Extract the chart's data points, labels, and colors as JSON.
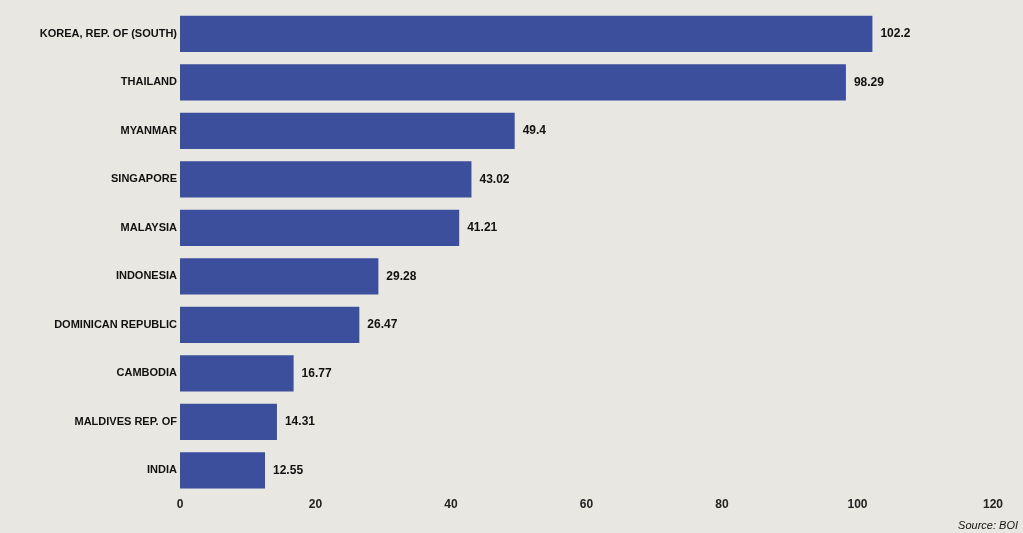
{
  "chart_data": {
    "type": "bar",
    "orientation": "horizontal",
    "categories": [
      "KOREA, REP. OF (SOUTH)",
      "THAILAND",
      "MYANMAR",
      "SINGAPORE",
      "MALAYSIA",
      "INDONESIA",
      "DOMINICAN REPUBLIC",
      "CAMBODIA",
      "MALDIVES REP. OF",
      "INDIA"
    ],
    "values": [
      102.2,
      98.29,
      49.4,
      43.02,
      41.21,
      29.28,
      26.47,
      16.77,
      14.31,
      12.55
    ],
    "color": "#3b4f9c",
    "xlim": [
      0,
      120
    ],
    "xticks": [
      0,
      20,
      40,
      60,
      80,
      100,
      120
    ],
    "grid": false,
    "legend": false,
    "data_labels": true,
    "annotations": [
      "Source: BOI"
    ]
  }
}
